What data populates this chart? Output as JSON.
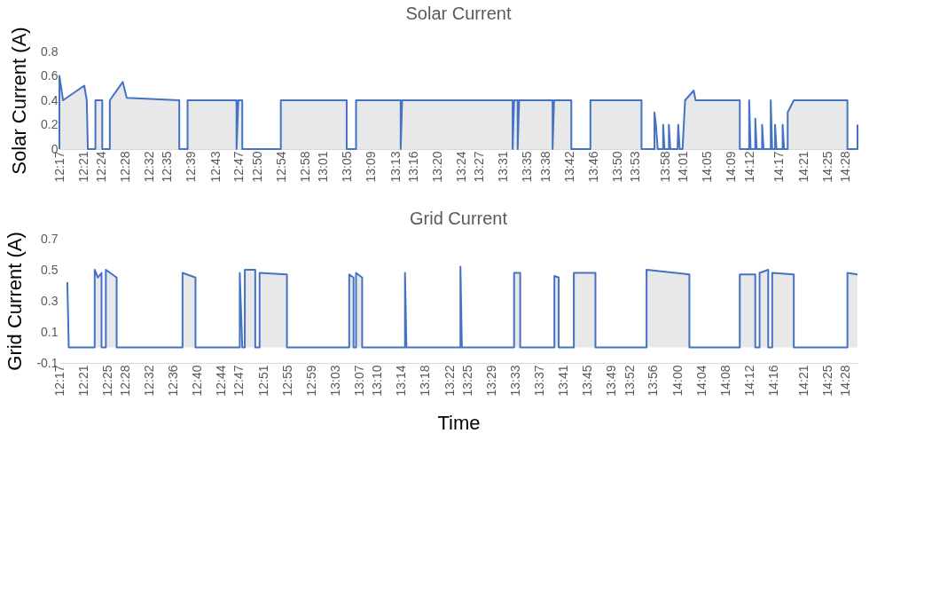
{
  "chart_data": [
    {
      "type": "area",
      "title": "Solar Current",
      "ylabel": "Solar Current (A)",
      "xlim": [
        12.283,
        14.5
      ],
      "ylim": [
        0,
        0.8
      ],
      "yticks": [
        0,
        0.2,
        0.4,
        0.6,
        0.8
      ],
      "xticks": [
        {
          "value": 12.283,
          "label": "12:17"
        },
        {
          "value": 12.35,
          "label": "12:21"
        },
        {
          "value": 12.4,
          "label": "12:24"
        },
        {
          "value": 12.467,
          "label": "12:28"
        },
        {
          "value": 12.533,
          "label": "12:32"
        },
        {
          "value": 12.583,
          "label": "12:35"
        },
        {
          "value": 12.65,
          "label": "12:39"
        },
        {
          "value": 12.717,
          "label": "12:43"
        },
        {
          "value": 12.783,
          "label": "12:47"
        },
        {
          "value": 12.833,
          "label": "12:50"
        },
        {
          "value": 12.9,
          "label": "12:54"
        },
        {
          "value": 12.967,
          "label": "12:58"
        },
        {
          "value": 13.017,
          "label": "13:01"
        },
        {
          "value": 13.083,
          "label": "13:05"
        },
        {
          "value": 13.15,
          "label": "13:09"
        },
        {
          "value": 13.217,
          "label": "13:13"
        },
        {
          "value": 13.267,
          "label": "13:16"
        },
        {
          "value": 13.333,
          "label": "13:20"
        },
        {
          "value": 13.4,
          "label": "13:24"
        },
        {
          "value": 13.45,
          "label": "13:27"
        },
        {
          "value": 13.517,
          "label": "13:31"
        },
        {
          "value": 13.583,
          "label": "13:35"
        },
        {
          "value": 13.633,
          "label": "13:38"
        },
        {
          "value": 13.7,
          "label": "13:42"
        },
        {
          "value": 13.767,
          "label": "13:46"
        },
        {
          "value": 13.833,
          "label": "13:50"
        },
        {
          "value": 13.883,
          "label": "13:53"
        },
        {
          "value": 13.967,
          "label": "13:58"
        },
        {
          "value": 14.017,
          "label": "14:01"
        },
        {
          "value": 14.083,
          "label": "14:05"
        },
        {
          "value": 14.15,
          "label": "14:09"
        },
        {
          "value": 14.2,
          "label": "14:12"
        },
        {
          "value": 14.283,
          "label": "14:17"
        },
        {
          "value": 14.35,
          "label": "14:21"
        },
        {
          "value": 14.417,
          "label": "14:25"
        },
        {
          "value": 14.467,
          "label": "14:28"
        }
      ],
      "series": [
        {
          "color": "#4472c4",
          "x": [
            12.283,
            12.283,
            12.293,
            12.352,
            12.359,
            12.362,
            12.383,
            12.383,
            12.402,
            12.402,
            12.423,
            12.423,
            12.459,
            12.47,
            12.616,
            12.616,
            12.639,
            12.639,
            12.775,
            12.775,
            12.78,
            12.791,
            12.791,
            12.898,
            12.898,
            13.081,
            13.081,
            13.107,
            13.107,
            13.231,
            13.231,
            13.235,
            13.542,
            13.542,
            13.546,
            13.556,
            13.556,
            13.56,
            13.653,
            13.653,
            13.657,
            13.705,
            13.705,
            13.758,
            13.758,
            13.9,
            13.9,
            13.936,
            13.936,
            13.94,
            13.945,
            13.96,
            13.96,
            13.964,
            13.976,
            13.976,
            13.98,
            14.0,
            14.002,
            14.006,
            14.014,
            14.021,
            14.045,
            14.05,
            14.173,
            14.173,
            14.199,
            14.199,
            14.203,
            14.216,
            14.216,
            14.22,
            14.235,
            14.235,
            14.239,
            14.259,
            14.259,
            14.263,
            14.271,
            14.271,
            14.275,
            14.292,
            14.292,
            14.296,
            14.306,
            14.306,
            14.323,
            14.472,
            14.472,
            14.5,
            14.5
          ],
          "values": [
            0,
            0.6,
            0.4,
            0.52,
            0.4,
            0,
            0,
            0.4,
            0.4,
            0,
            0,
            0.4,
            0.55,
            0.42,
            0.4,
            0,
            0,
            0.4,
            0.4,
            0,
            0.4,
            0.4,
            0,
            0,
            0.4,
            0.4,
            0,
            0,
            0.4,
            0.4,
            0,
            0.4,
            0.4,
            0,
            0.4,
            0.4,
            0,
            0.4,
            0.4,
            0,
            0.4,
            0.4,
            0,
            0,
            0.4,
            0.4,
            0,
            0,
            0.3,
            0.2,
            0,
            0,
            0.2,
            0,
            0,
            0.2,
            0,
            0,
            0.2,
            0,
            0,
            0.4,
            0.48,
            0.4,
            0.4,
            0,
            0,
            0.4,
            0,
            0,
            0.25,
            0,
            0,
            0.2,
            0,
            0,
            0.4,
            0,
            0,
            0.2,
            0,
            0,
            0.2,
            0,
            0,
            0.3,
            0.4,
            0.4,
            0,
            0,
            0.2
          ]
        }
      ]
    },
    {
      "type": "area",
      "title": "Grid Current",
      "ylabel": "Grid Current (A)",
      "xlabel": "Time",
      "xlim": [
        12.283,
        14.5
      ],
      "ylim": [
        -0.1,
        0.7
      ],
      "yticks": [
        -0.1,
        0.1,
        0.3,
        0.5,
        0.7
      ],
      "xticks": [
        {
          "value": 12.283,
          "label": "12:17"
        },
        {
          "value": 12.35,
          "label": "12:21"
        },
        {
          "value": 12.417,
          "label": "12:25"
        },
        {
          "value": 12.467,
          "label": "12:28"
        },
        {
          "value": 12.533,
          "label": "12:32"
        },
        {
          "value": 12.6,
          "label": "12:36"
        },
        {
          "value": 12.667,
          "label": "12:40"
        },
        {
          "value": 12.733,
          "label": "12:44"
        },
        {
          "value": 12.783,
          "label": "12:47"
        },
        {
          "value": 12.85,
          "label": "12:51"
        },
        {
          "value": 12.917,
          "label": "12:55"
        },
        {
          "value": 12.983,
          "label": "12:59"
        },
        {
          "value": 13.05,
          "label": "13:03"
        },
        {
          "value": 13.117,
          "label": "13:07"
        },
        {
          "value": 13.167,
          "label": "13:10"
        },
        {
          "value": 13.233,
          "label": "13:14"
        },
        {
          "value": 13.3,
          "label": "13:18"
        },
        {
          "value": 13.367,
          "label": "13:22"
        },
        {
          "value": 13.417,
          "label": "13:25"
        },
        {
          "value": 13.483,
          "label": "13:29"
        },
        {
          "value": 13.55,
          "label": "13:33"
        },
        {
          "value": 13.617,
          "label": "13:37"
        },
        {
          "value": 13.683,
          "label": "13:41"
        },
        {
          "value": 13.75,
          "label": "13:45"
        },
        {
          "value": 13.817,
          "label": "13:49"
        },
        {
          "value": 13.867,
          "label": "13:52"
        },
        {
          "value": 13.933,
          "label": "13:56"
        },
        {
          "value": 14.0,
          "label": "14:00"
        },
        {
          "value": 14.067,
          "label": "14:04"
        },
        {
          "value": 14.133,
          "label": "14:08"
        },
        {
          "value": 14.2,
          "label": "14:12"
        },
        {
          "value": 14.267,
          "label": "14:16"
        },
        {
          "value": 14.35,
          "label": "14:21"
        },
        {
          "value": 14.417,
          "label": "14:25"
        },
        {
          "value": 14.467,
          "label": "14:28"
        }
      ],
      "series": [
        {
          "color": "#4472c4",
          "x": [
            12.305,
            12.309,
            12.381,
            12.381,
            12.39,
            12.4,
            12.4,
            12.412,
            12.412,
            12.442,
            12.442,
            12.625,
            12.625,
            12.661,
            12.661,
            12.784,
            12.784,
            12.791,
            12.798,
            12.798,
            12.827,
            12.827,
            12.839,
            12.839,
            12.915,
            12.915,
            13.088,
            13.088,
            13.1,
            13.1,
            13.107,
            13.107,
            13.124,
            13.124,
            13.243,
            13.243,
            13.247,
            13.397,
            13.397,
            13.401,
            13.546,
            13.546,
            13.563,
            13.563,
            13.658,
            13.658,
            13.67,
            13.67,
            13.712,
            13.712,
            13.772,
            13.772,
            13.914,
            13.914,
            14.033,
            14.033,
            14.173,
            14.173,
            14.216,
            14.216,
            14.228,
            14.228,
            14.252,
            14.252,
            14.263,
            14.263,
            14.323,
            14.323,
            14.472,
            14.472,
            14.5
          ],
          "values": [
            0.42,
            0,
            0,
            0.5,
            0.45,
            0.48,
            0,
            0,
            0.5,
            0.45,
            0,
            0,
            0.48,
            0.45,
            0,
            0,
            0.48,
            0,
            0,
            0.5,
            0.5,
            0,
            0,
            0.48,
            0.47,
            0,
            0,
            0.47,
            0.45,
            0,
            0,
            0.48,
            0.45,
            0,
            0,
            0.48,
            0,
            0,
            0.52,
            0,
            0,
            0.48,
            0.48,
            0,
            0,
            0.46,
            0.45,
            0,
            0,
            0.48,
            0.48,
            0,
            0,
            0.5,
            0.47,
            0,
            0,
            0.47,
            0.47,
            0,
            0,
            0.48,
            0.5,
            0,
            0,
            0.48,
            0.47,
            0,
            0,
            0.48,
            0.47
          ]
        }
      ]
    }
  ]
}
